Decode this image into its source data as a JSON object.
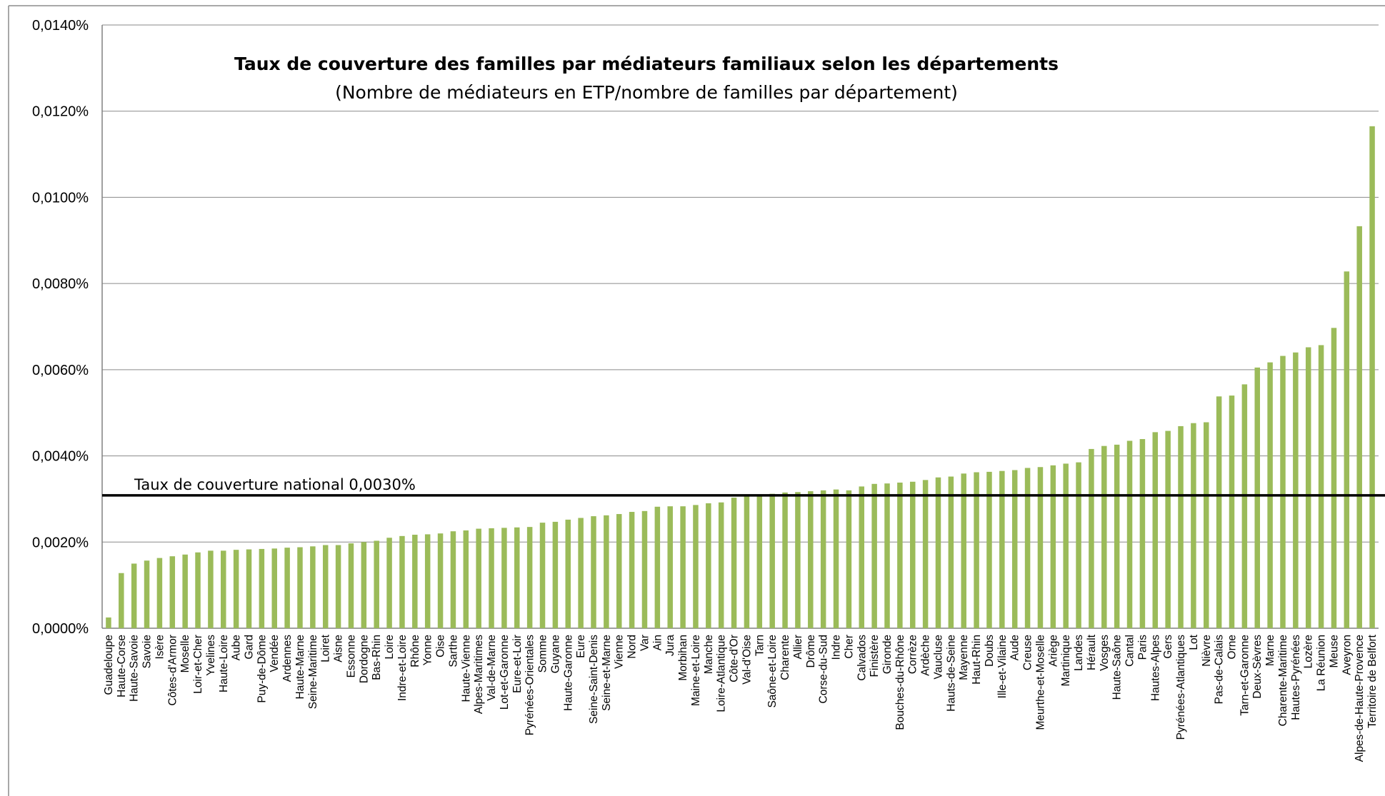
{
  "chart_data": {
    "type": "bar",
    "title": "Taux de couverture des familles par médiateurs familiaux selon les départements",
    "subtitle": "(Nombre de médiateurs en ETP/nombre de familles par département)",
    "xlabel": "",
    "ylabel": "",
    "ylim": [
      0,
      0.014
    ],
    "yticks": [
      "0,0000%",
      "0,0020%",
      "0,0040%",
      "0,0060%",
      "0,0080%",
      "0,0100%",
      "0,0120%",
      "0,0140%"
    ],
    "grid": true,
    "bar_color": "#9bbb59",
    "reference_line": {
      "label": "Taux de couverture national 0,0030%",
      "value": 0.003,
      "color": "#000000"
    },
    "categories": [
      "Guadeloupe",
      "Haute-Corse",
      "Haute-Savoie",
      "Savoie",
      "Isère",
      "Côtes-d'Armor",
      "Moselle",
      "Loir-et-Cher",
      "Yvelines",
      "Haute-Loire",
      "Aube",
      "Gard",
      "Puy-de-Dôme",
      "Vendée",
      "Ardennes",
      "Haute-Marne",
      "Seine-Maritime",
      "Loiret",
      "Aisne",
      "Essonne",
      "Dordogne",
      "Bas-Rhin",
      "Loire",
      "Indre-et-Loire",
      "Rhône",
      "Yonne",
      "Oise",
      "Sarthe",
      "Haute-Vienne",
      "Alpes-Maritimes",
      "Val-de-Marne",
      "Lot-et-Garonne",
      "Eure-et-Loir",
      "Pyrénées-Orientales",
      "Somme",
      "Guyane",
      "Haute-Garonne",
      "Eure",
      "Seine-Saint-Denis",
      "Seine-et-Marne",
      "Vienne",
      "Nord",
      "Var",
      "Ain",
      "Jura",
      "Morbihan",
      "Maine-et-Loire",
      "Manche",
      "Loire-Atlantique",
      "Côte-d'Or",
      "Val-d'Oise",
      "Tarn",
      "Saône-et-Loire",
      "Charente",
      "Allier",
      "Drôme",
      "Corse-du-Sud",
      "Indre",
      "Cher",
      "Calvados",
      "Finistère",
      "Gironde",
      "Bouches-du-Rhône",
      "Corrèze",
      "Ardèche",
      "Vaucluse",
      "Hauts-de-Seine",
      "Mayenne",
      "Haut-Rhin",
      "Doubs",
      "Ille-et-Vilaine",
      "Aude",
      "Creuse",
      "Meurthe-et-Moselle",
      "Ariège",
      "Martinique",
      "Landes",
      "Hérault",
      "Vosges",
      "Haute-Saône",
      "Cantal",
      "Paris",
      "Hautes-Alpes",
      "Gers",
      "Pyrénées-Atlantiques",
      "Lot",
      "Nièvre",
      "Pas-de-Calais",
      "Orne",
      "Tarn-et-Garonne",
      "Deux-Sèvres",
      "Marne",
      "Charente-Maritime",
      "Hautes-Pyrénées",
      "Lozère",
      "La Réunion",
      "Meuse",
      "Aveyron",
      "Alpes-de-Haute-Provence",
      "Territoire de Belfort"
    ],
    "values": [
      0.00025,
      0.00128,
      0.0015,
      0.00157,
      0.00163,
      0.00167,
      0.00171,
      0.00176,
      0.0018,
      0.0018,
      0.00182,
      0.00183,
      0.00184,
      0.00185,
      0.00187,
      0.00188,
      0.0019,
      0.00193,
      0.00193,
      0.00197,
      0.002,
      0.00203,
      0.0021,
      0.00214,
      0.00217,
      0.00218,
      0.0022,
      0.00225,
      0.00227,
      0.00231,
      0.00232,
      0.00233,
      0.00234,
      0.00235,
      0.00245,
      0.00247,
      0.00252,
      0.00256,
      0.0026,
      0.00262,
      0.00265,
      0.0027,
      0.00272,
      0.00282,
      0.00283,
      0.00283,
      0.00286,
      0.0029,
      0.00292,
      0.00303,
      0.00307,
      0.0031,
      0.00312,
      0.00315,
      0.00316,
      0.00318,
      0.0032,
      0.00322,
      0.0032,
      0.00329,
      0.00335,
      0.00336,
      0.00338,
      0.0034,
      0.00344,
      0.0035,
      0.00352,
      0.00359,
      0.00362,
      0.00363,
      0.00365,
      0.00367,
      0.00372,
      0.00374,
      0.00378,
      0.00382,
      0.00385,
      0.00416,
      0.00423,
      0.00426,
      0.00435,
      0.00439,
      0.00455,
      0.00458,
      0.00469,
      0.00476,
      0.00478,
      0.00538,
      0.0054,
      0.00566,
      0.00605,
      0.00617,
      0.00632,
      0.0064,
      0.00652,
      0.00657,
      0.00697,
      0.00828,
      0.00933,
      0.01165
    ]
  }
}
